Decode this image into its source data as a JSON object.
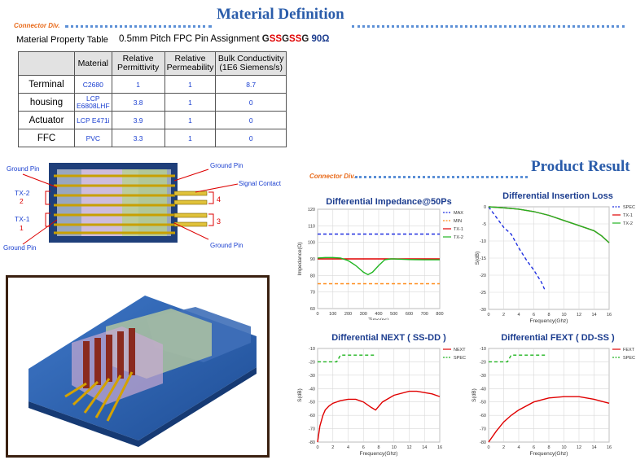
{
  "header": {
    "division": "Connector Div.",
    "title": "Material Definition"
  },
  "table_caption": {
    "left": "Material Property Table",
    "spec": "0.5mm Pitch FPC  Pin Assignment ",
    "pin_letters": [
      {
        "ch": "G",
        "color": "#222222"
      },
      {
        "ch": "S",
        "color": "#e00000"
      },
      {
        "ch": "S",
        "color": "#e00000"
      },
      {
        "ch": "G",
        "color": "#222222"
      },
      {
        "ch": "S",
        "color": "#e00000"
      },
      {
        "ch": "S",
        "color": "#e00000"
      },
      {
        "ch": "G",
        "color": "#222222"
      }
    ],
    "impedance": " 90Ω"
  },
  "material_table": {
    "headers": [
      "",
      "Material",
      "Relative Permittivity",
      "Relative Permeability",
      "Bulk Conductivity (1E6 Siemens/s)"
    ],
    "rows": [
      {
        "name": "Terminal",
        "material": "C2680",
        "permittivity": "1",
        "permeability": "1",
        "conductivity": "8.7"
      },
      {
        "name": "housing",
        "material": "LCP E6808LHF",
        "permittivity": "3.8",
        "permeability": "1",
        "conductivity": "0"
      },
      {
        "name": "Actuator",
        "material": "LCP E471i",
        "permittivity": "3.9",
        "permeability": "1",
        "conductivity": "0"
      },
      {
        "name": "FFC",
        "material": "PVC",
        "permittivity": "3.3",
        "permeability": "1",
        "conductivity": "0"
      }
    ]
  },
  "diagram_labels": {
    "ground_pin_tl": "Ground Pin",
    "ground_pin_tr": "Ground Pin",
    "signal_contact": "Signal Contact",
    "tx2": "TX-2",
    "tx2_num": "2",
    "tx1": "TX-1",
    "tx1_num": "1",
    "ground_pin_bl": "Ground Pin",
    "ground_pin_br": "Ground Pin",
    "num4": "4",
    "num3": "3"
  },
  "result": {
    "division": "Connector Div.",
    "title": "Product Result"
  },
  "colors": {
    "accent": "#2a5caa",
    "division": "#e86a1a",
    "max": "#1f2fe0",
    "min": "#ff8c1a",
    "tx": "#e00000",
    "tx2": "#22b522",
    "spec": "#1f2fe0"
  },
  "chart_data": [
    {
      "type": "line",
      "title": "Differential  Impedance@50Ps",
      "xlabel": "Time(ps)",
      "ylabel": "Impedance(Ω)",
      "xlim": [
        0,
        800
      ],
      "ylim": [
        60,
        120
      ],
      "xticks": [
        "0",
        "100",
        "200",
        "300",
        "400",
        "500",
        "600",
        "700",
        "800"
      ],
      "yticks": [
        "60",
        "70",
        "80",
        "90",
        "100",
        "110",
        "120"
      ],
      "series": [
        {
          "name": "MAX",
          "color": "#1f2fe0",
          "dash": "4,3",
          "x": [
            0,
            800
          ],
          "y": [
            105,
            105
          ]
        },
        {
          "name": "MIN",
          "color": "#ff8c1a",
          "dash": "4,3",
          "x": [
            0,
            800
          ],
          "y": [
            75,
            75
          ]
        },
        {
          "name": "TX-1",
          "color": "#e00000",
          "dash": "",
          "x": [
            0,
            800
          ],
          "y": [
            90,
            90
          ]
        },
        {
          "name": "TX-2",
          "color": "#22b522",
          "dash": "",
          "x": [
            0,
            50,
            100,
            150,
            200,
            250,
            300,
            330,
            360,
            400,
            440,
            480,
            500,
            550,
            600,
            700,
            800
          ],
          "y": [
            90.5,
            90.8,
            90.8,
            90.5,
            89,
            86,
            82,
            80.5,
            82,
            86,
            89.5,
            90,
            90,
            89.8,
            89.6,
            89.5,
            89.5
          ]
        }
      ]
    },
    {
      "type": "line",
      "title": "Differential Insertion Loss",
      "xlabel": "Frequency(Ghz)",
      "ylabel": "S(dB)",
      "xlim": [
        0,
        16
      ],
      "ylim": [
        -30,
        0
      ],
      "xticks": [
        "0",
        "2",
        "4",
        "6",
        "8",
        "10",
        "12",
        "14",
        "16"
      ],
      "yticks": [
        "-30",
        "-25",
        "-20",
        "-15",
        "-10",
        "-5",
        "0"
      ],
      "series": [
        {
          "name": "SPEC",
          "color": "#1f2fe0",
          "dash": "4,3",
          "x": [
            0,
            1,
            2,
            3,
            4,
            5,
            6,
            7,
            7.5
          ],
          "y": [
            0,
            -3,
            -6,
            -8,
            -12,
            -15.5,
            -18.5,
            -22,
            -24.5
          ]
        },
        {
          "name": "TX-1",
          "color": "#e00000",
          "dash": "",
          "x": [
            0,
            2,
            4,
            6,
            8,
            10,
            12,
            14,
            15,
            16
          ],
          "y": [
            0,
            -0.3,
            -0.7,
            -1.4,
            -2.5,
            -4,
            -5.5,
            -7,
            -8.5,
            -10.5
          ]
        },
        {
          "name": "TX-2",
          "color": "#22b522",
          "dash": "",
          "x": [
            0,
            2,
            4,
            6,
            8,
            10,
            12,
            14,
            15,
            16
          ],
          "y": [
            0,
            -0.3,
            -0.7,
            -1.4,
            -2.5,
            -4,
            -5.5,
            -7,
            -8.5,
            -10.5
          ]
        }
      ]
    },
    {
      "type": "line",
      "title": "Differential NEXT ( SS-DD )",
      "xlabel": "Frequency(Ghz)",
      "ylabel": "S(dB)",
      "xlim": [
        0,
        16
      ],
      "ylim": [
        -80,
        -10
      ],
      "xticks": [
        "0",
        "2",
        "4",
        "6",
        "8",
        "10",
        "12",
        "14",
        "16"
      ],
      "yticks": [
        "-80",
        "-70",
        "-60",
        "-50",
        "-40",
        "-30",
        "-20",
        "-10"
      ],
      "series": [
        {
          "name": "NEXT",
          "color": "#e00000",
          "dash": "",
          "x": [
            0,
            0.3,
            0.7,
            1,
            1.5,
            2,
            3,
            4,
            5,
            6,
            7,
            7.6,
            8.5,
            10,
            12,
            13,
            14,
            15,
            16
          ],
          "y": [
            -80,
            -68,
            -60,
            -56,
            -53,
            -51,
            -49,
            -48,
            -48,
            -50,
            -54,
            -56,
            -50,
            -45,
            -42,
            -42,
            -43,
            -44,
            -46
          ]
        },
        {
          "name": "SPEC",
          "color": "#22b522",
          "dash": "4,3",
          "x": [
            0,
            2.5,
            3,
            7.5
          ],
          "y": [
            -20,
            -20,
            -15,
            -15
          ]
        }
      ]
    },
    {
      "type": "line",
      "title": "Differential FEXT ( DD-SS )",
      "xlabel": "Frequency(Ghz)",
      "ylabel": "S(dB)",
      "xlim": [
        0,
        16
      ],
      "ylim": [
        -80,
        -10
      ],
      "xticks": [
        "0",
        "2",
        "4",
        "6",
        "8",
        "10",
        "12",
        "14",
        "16"
      ],
      "yticks": [
        "-80",
        "-70",
        "-60",
        "-50",
        "-40",
        "-30",
        "-20",
        "-10"
      ],
      "series": [
        {
          "name": "FEXT",
          "color": "#e00000",
          "dash": "",
          "x": [
            0,
            1,
            2,
            3,
            4,
            6,
            8,
            10,
            12,
            14,
            16
          ],
          "y": [
            -80,
            -72,
            -65,
            -60,
            -56,
            -50,
            -47,
            -46,
            -46,
            -48,
            -51
          ]
        },
        {
          "name": "SPEC",
          "color": "#22b522",
          "dash": "4,3",
          "x": [
            0,
            2.5,
            3,
            7.5
          ],
          "y": [
            -20,
            -20,
            -15,
            -15
          ]
        }
      ]
    }
  ]
}
